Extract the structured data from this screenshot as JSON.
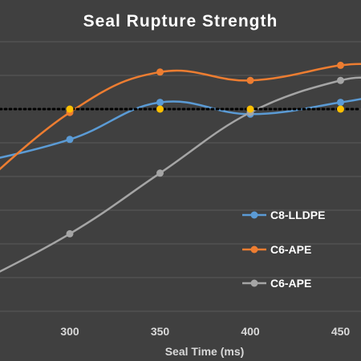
{
  "chart_data": {
    "type": "line",
    "title": "Seal Rupture Strength",
    "xlabel": "Seal Time (ms)",
    "ylabel": "",
    "x_ticks": [
      "300",
      "350",
      "400",
      "450"
    ],
    "xlim": [
      250,
      460
    ],
    "ylim": [
      0,
      8
    ],
    "grid": true,
    "legend_position": "right",
    "background_color": "#404040",
    "gridline_color": "#5a5a5a",
    "series": [
      {
        "name": "C8-LLDPE",
        "color": "#5b9bd5",
        "smooth": true,
        "x": [
          240,
          300,
          350,
          400,
          450,
          470
        ],
        "y": [
          4.3,
          5.1,
          6.2,
          5.85,
          6.2,
          6.4
        ]
      },
      {
        "name": "C6-APE",
        "color": "#ed7d31",
        "smooth": true,
        "x": [
          240,
          300,
          350,
          400,
          450,
          470
        ],
        "y": [
          3.2,
          5.9,
          7.1,
          6.85,
          7.3,
          7.3
        ]
      },
      {
        "name": "C6-APE",
        "color": "#a5a5a5",
        "smooth": true,
        "x": [
          240,
          300,
          350,
          400,
          450,
          470
        ],
        "y": [
          0.6,
          2.3,
          4.1,
          5.9,
          6.85,
          6.85
        ]
      }
    ],
    "reference_line": {
      "y": 6.0,
      "color": "#000000",
      "style": "dotted",
      "markers_x": [
        300,
        350,
        400,
        450
      ],
      "marker_color": "#ffc000"
    }
  }
}
